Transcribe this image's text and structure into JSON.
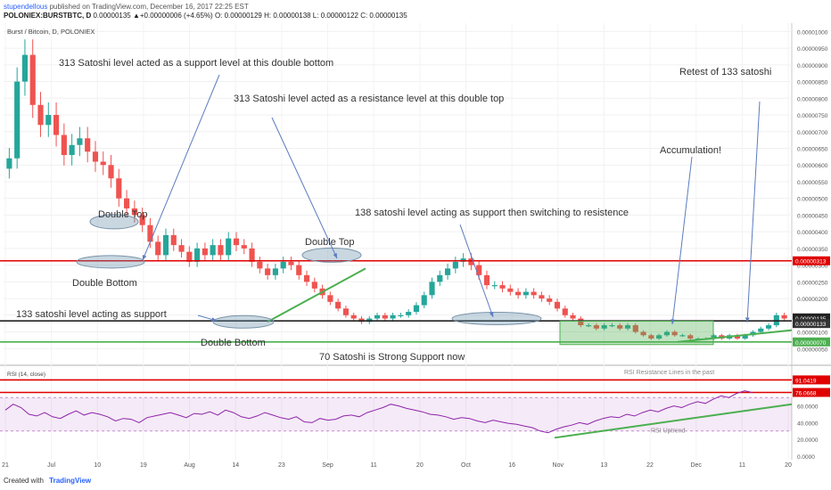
{
  "header": {
    "user": "stupendellous",
    "published": "published on TradingView.com, December 16, 2017 22:25 EST",
    "symbol": "POLONIEX:BURSTBTC, D",
    "ohlc": "0.00000135 ▲+0.00000006 (+4.65%) O: 0.00000129 H: 0.00000138 L: 0.00000122 C: 0.00000135"
  },
  "footer": {
    "created_with": "Created with",
    "brand": "TradingView"
  },
  "chart_data": [
    {
      "type": "candlestick",
      "title": "Burst / Bitcoin, D, POLONIEX",
      "ylim": [
        0,
        1.025e-05
      ],
      "y_ticks": [
        "0.00001000",
        "0.00000950",
        "0.00000900",
        "0.00000850",
        "0.00000800",
        "0.00000750",
        "0.00000700",
        "0.00000650",
        "0.00000600",
        "0.00000550",
        "0.00000500",
        "0.00000450",
        "0.00000400",
        "0.00000350",
        "0.00000300",
        "0.00000250",
        "0.00000200",
        "0.00000150",
        "0.00000100",
        "0.00000050"
      ],
      "x_ticks": [
        "21",
        "Jul",
        "10",
        "19",
        "Aug",
        "14",
        "23",
        "Sep",
        "11",
        "20",
        "Oct",
        "16",
        "Nov",
        "13",
        "22",
        "Dec",
        "11",
        "20"
      ],
      "price_labels": [
        {
          "value": "0.00000313",
          "color": "#e00000"
        },
        {
          "value": "0.00000135",
          "color": "#222222"
        },
        {
          "value": "0.00000133",
          "color": "#333333"
        },
        {
          "value": "0.00000070",
          "color": "#4caf50"
        }
      ],
      "horizontal_levels": [
        {
          "value": 3.13e-06,
          "color": "#e00000"
        },
        {
          "value": 1.33e-06,
          "color": "#222222"
        },
        {
          "value": 7e-07,
          "color": "#4caf50"
        }
      ],
      "annotations": [
        "313 Satoshi level acted as a support level at this double bottom",
        "313 Satoshi level acted as a resistance level at this double top",
        "Retest of 133 satoshi",
        "Accumulation!",
        "138 satoshi level acting as support then switching to resistence",
        "Double Top",
        "Double Bottom",
        "Double Top",
        "133 satoshi level acting as support",
        "Double Bottom",
        "70 Satoshi is Strong Support now"
      ],
      "closes": [
        6.2e-06,
        8.5e-06,
        9.3e-06,
        7.8e-06,
        7.2e-06,
        7.5e-06,
        6.9e-06,
        6.3e-06,
        6.6e-06,
        6.8e-06,
        6.4e-06,
        6.1e-06,
        6e-06,
        5.6e-06,
        5e-06,
        4.7e-06,
        4.5e-06,
        4.2e-06,
        3.7e-06,
        3.3e-06,
        3.9e-06,
        3.6e-06,
        3.4e-06,
        3.1e-06,
        3.5e-06,
        3.3e-06,
        3.6e-06,
        3.3e-06,
        3.8e-06,
        3.6e-06,
        3.5e-06,
        3.1e-06,
        2.9e-06,
        2.7e-06,
        2.9e-06,
        3.1e-06,
        3e-06,
        2.7e-06,
        2.5e-06,
        2.3e-06,
        2.1e-06,
        1.9e-06,
        1.7e-06,
        1.5e-06,
        1.4e-06,
        1.3e-06,
        1.4e-06,
        1.5e-06,
        1.4e-06,
        1.5e-06,
        1.5e-06,
        1.6e-06,
        1.8e-06,
        2.1e-06,
        2.5e-06,
        2.7e-06,
        2.9e-06,
        3.1e-06,
        3.2e-06,
        3e-06,
        2.7e-06,
        2.4e-06,
        2.4e-06,
        2.3e-06,
        2.2e-06,
        2.1e-06,
        2.2e-06,
        2.1e-06,
        2e-06,
        1.9e-06,
        1.7e-06,
        1.5e-06,
        1.4e-06,
        1.2e-06,
        1.2e-06,
        1.1e-06,
        1.2e-06,
        1.2e-06,
        1.1e-06,
        1.2e-06,
        1e-06,
        9e-07,
        8e-07,
        9e-07,
        1e-06,
        9e-07,
        9e-07,
        8e-07,
        8e-07,
        8e-07,
        9e-07,
        8e-07,
        9e-07,
        8e-07,
        9e-07,
        1e-06,
        1.1e-06,
        1.2e-06,
        1.5e-06,
        1.4e-06
      ]
    },
    {
      "type": "line",
      "title": "RSI (14, close)",
      "ylim": [
        0,
        100
      ],
      "y_ticks": [
        "80.0000",
        "60.0000",
        "40.0000",
        "20.0000",
        "0.0000"
      ],
      "levels": [
        {
          "value": 70,
          "label": "upper band"
        },
        {
          "value": 30,
          "label": "lower band"
        }
      ],
      "value_labels": [
        {
          "value": "91.0419",
          "color": "#e00000"
        },
        {
          "value": "76.0668",
          "color": "#e00000"
        }
      ],
      "annotations": [
        "RSI Resistance Lines in the past",
        "RSI Uptrend"
      ],
      "values": [
        55,
        62,
        58,
        50,
        48,
        52,
        47,
        45,
        50,
        54,
        49,
        52,
        50,
        47,
        42,
        45,
        44,
        40,
        46,
        48,
        50,
        52,
        49,
        46,
        51,
        50,
        53,
        49,
        55,
        52,
        47,
        45,
        48,
        52,
        49,
        46,
        44,
        47,
        41,
        40,
        45,
        43,
        44,
        48,
        49,
        47,
        52,
        55,
        58,
        62,
        60,
        57,
        55,
        53,
        50,
        49,
        47,
        44,
        46,
        45,
        42,
        40,
        43,
        41,
        39,
        38,
        36,
        34,
        30,
        28,
        32,
        35,
        37,
        40,
        38,
        42,
        45,
        47,
        46,
        50,
        48,
        52,
        55,
        53,
        57,
        60,
        58,
        62,
        65,
        63,
        68,
        72,
        70,
        75,
        78,
        76
      ]
    }
  ]
}
